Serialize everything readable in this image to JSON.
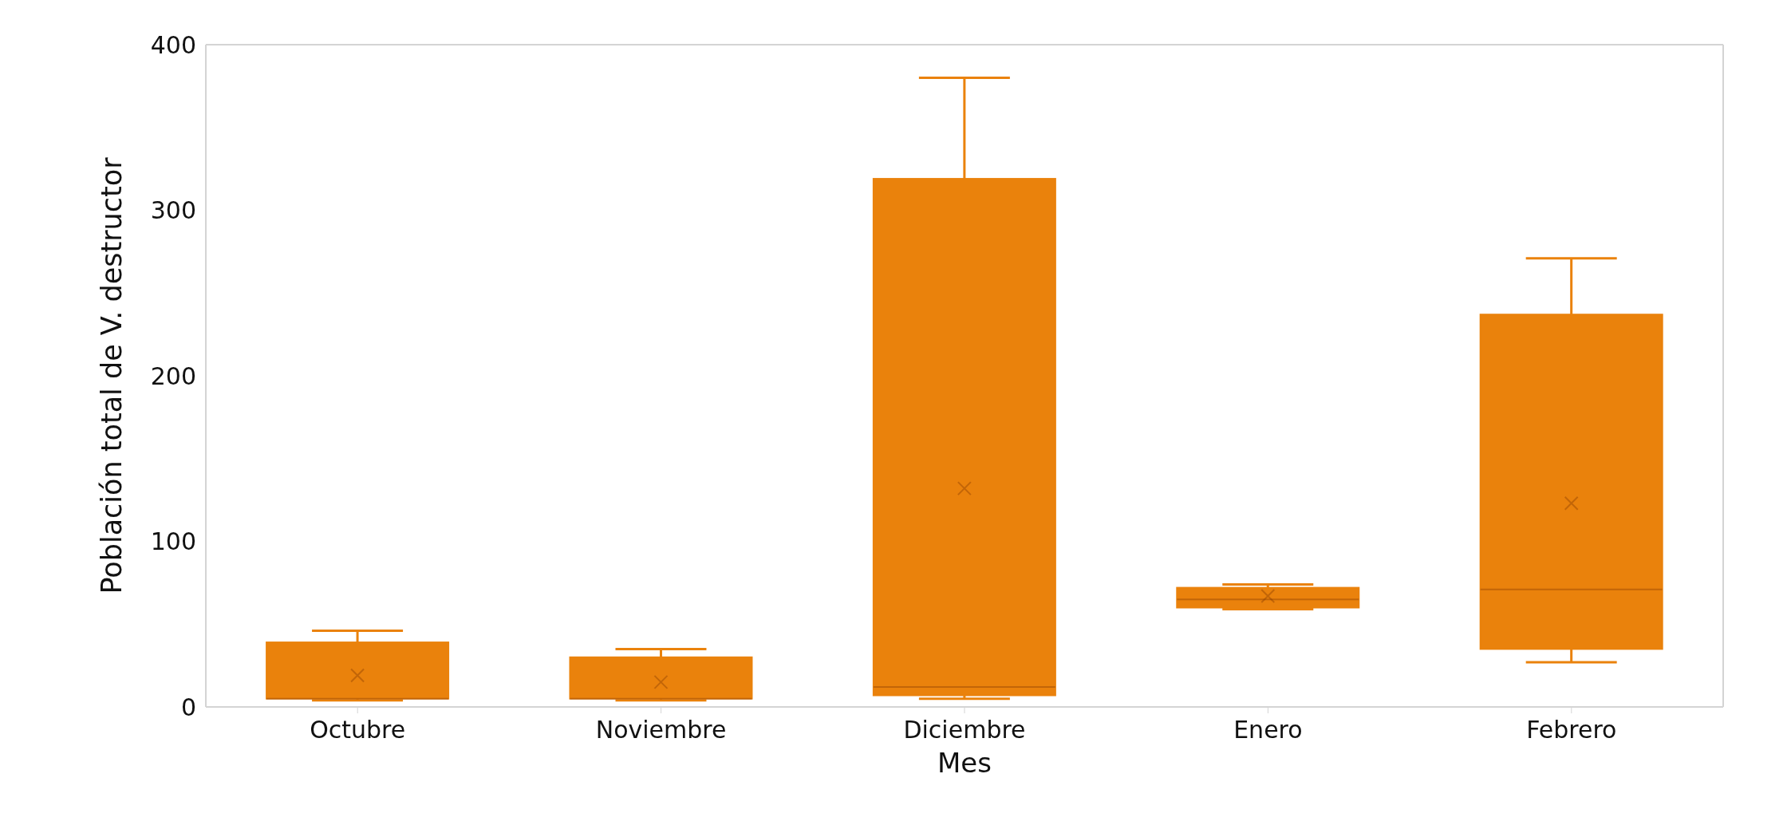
{
  "chart_data": {
    "type": "box",
    "xlabel": "Mes",
    "ylabel": "Población total de V. destructor",
    "categories": [
      "Octubre",
      "Noviembre",
      "Diciembre",
      "Enero",
      "Febrero"
    ],
    "boxes": [
      {
        "low": 4,
        "q1": 5,
        "median": 5,
        "q3": 39,
        "high": 46,
        "mean": 19
      },
      {
        "low": 4,
        "q1": 5,
        "median": 5,
        "q3": 30,
        "high": 35,
        "mean": 15
      },
      {
        "low": 5,
        "q1": 7,
        "median": 12,
        "q3": 319,
        "high": 380,
        "mean": 132
      },
      {
        "low": 59,
        "q1": 60,
        "median": 65,
        "q3": 72,
        "high": 74,
        "mean": 67
      },
      {
        "low": 27,
        "q1": 35,
        "median": 71,
        "q3": 237,
        "high": 271,
        "mean": 123
      }
    ],
    "color": "#ea820c",
    "ylim": [
      0,
      400
    ],
    "yticks": [
      0,
      100,
      200,
      300,
      400
    ]
  }
}
